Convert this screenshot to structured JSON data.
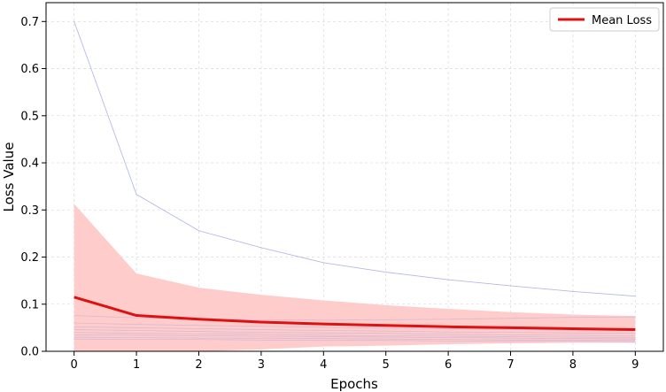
{
  "chart_data": {
    "type": "line",
    "title": "",
    "xlabel": "Epochs",
    "ylabel": "Loss Value",
    "x": [
      0,
      1,
      2,
      3,
      4,
      5,
      6,
      7,
      8,
      9
    ],
    "xlim": [
      -0.45,
      9.45
    ],
    "ylim": [
      0.0,
      0.74
    ],
    "xticks": [
      0,
      1,
      2,
      3,
      4,
      5,
      6,
      7,
      8,
      9
    ],
    "yticks": [
      0.0,
      0.1,
      0.2,
      0.3,
      0.4,
      0.5,
      0.6,
      0.7
    ],
    "grid": true,
    "legend": {
      "placement": "top-right",
      "entries": [
        "Mean Loss"
      ]
    },
    "mean_series": {
      "name": "Mean Loss",
      "color": "#dd1111",
      "values": [
        0.115,
        0.076,
        0.068,
        0.062,
        0.058,
        0.055,
        0.052,
        0.05,
        0.048,
        0.046
      ]
    },
    "std_band": {
      "color": "#ffcccc",
      "upper": [
        0.313,
        0.165,
        0.135,
        0.12,
        0.108,
        0.098,
        0.09,
        0.083,
        0.078,
        0.075
      ],
      "lower": [
        0.0,
        0.0,
        0.0,
        0.004,
        0.01,
        0.012,
        0.015,
        0.017,
        0.018,
        0.018
      ]
    },
    "individual_series_color": "#9aa0dd",
    "individual_series": [
      {
        "values": [
          0.7,
          0.333,
          0.256,
          0.22,
          0.188,
          0.168,
          0.152,
          0.139,
          0.127,
          0.117
        ]
      },
      {
        "values": [
          0.076,
          0.071,
          0.068,
          0.067,
          0.066,
          0.067,
          0.068,
          0.07,
          0.072,
          0.073
        ]
      },
      {
        "values": [
          0.06,
          0.057,
          0.055,
          0.053,
          0.051,
          0.049,
          0.048,
          0.046,
          0.045,
          0.044
        ]
      },
      {
        "values": [
          0.052,
          0.05,
          0.048,
          0.046,
          0.044,
          0.043,
          0.041,
          0.04,
          0.039,
          0.038
        ]
      },
      {
        "values": [
          0.046,
          0.044,
          0.042,
          0.04,
          0.039,
          0.038,
          0.036,
          0.035,
          0.034,
          0.033
        ]
      },
      {
        "values": [
          0.04,
          0.038,
          0.037,
          0.036,
          0.034,
          0.033,
          0.032,
          0.031,
          0.03,
          0.029
        ]
      },
      {
        "values": [
          0.035,
          0.034,
          0.033,
          0.032,
          0.031,
          0.03,
          0.029,
          0.028,
          0.027,
          0.026
        ]
      },
      {
        "values": [
          0.03,
          0.029,
          0.028,
          0.028,
          0.027,
          0.026,
          0.025,
          0.024,
          0.024,
          0.023
        ]
      },
      {
        "values": [
          0.026,
          0.025,
          0.025,
          0.024,
          0.023,
          0.023,
          0.022,
          0.021,
          0.021,
          0.02
        ]
      }
    ]
  }
}
